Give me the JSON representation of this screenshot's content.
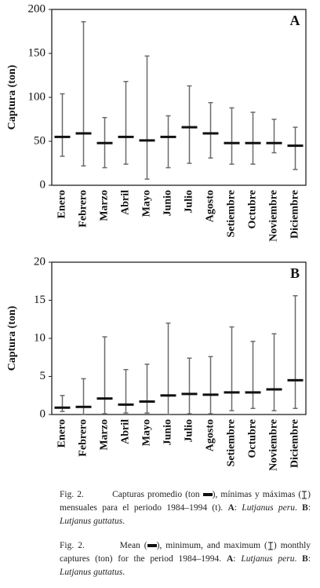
{
  "chart_data": [
    {
      "type": "range",
      "panel_label": "A",
      "ylabel": "Captura (ton)",
      "categories": [
        "Enero",
        "Febrero",
        "Marzo",
        "Abril",
        "Mayo",
        "Junio",
        "Julio",
        "Agosto",
        "Setiembre",
        "Octubre",
        "Noviembre",
        "Diciembre"
      ],
      "mean": [
        55,
        59,
        48,
        55,
        51,
        55,
        66,
        59,
        48,
        48,
        48,
        45
      ],
      "min": [
        33,
        22,
        20,
        24,
        7,
        20,
        25,
        31,
        24,
        24,
        37,
        18
      ],
      "max": [
        104,
        186,
        77,
        118,
        147,
        79,
        113,
        94,
        88,
        83,
        75,
        66
      ],
      "ylim": [
        0,
        200
      ],
      "yticks": [
        0,
        50,
        100,
        150,
        200
      ],
      "mean_color": "#111111",
      "whisker_color": "#6a6a6a"
    },
    {
      "type": "range",
      "panel_label": "B",
      "ylabel": "Captura (ton)",
      "categories": [
        "Enero",
        "Febrero",
        "Marzo",
        "Abril",
        "Mayo",
        "Junio",
        "Julio",
        "Agosto",
        "Setiembre",
        "Octubre",
        "Noviembre",
        "Diciembre"
      ],
      "mean": [
        0.9,
        1.0,
        2.1,
        1.3,
        1.7,
        2.5,
        2.7,
        2.6,
        2.9,
        2.9,
        3.3,
        4.5
      ],
      "min": [
        0.4,
        0,
        0.1,
        0.2,
        0.2,
        0,
        0.1,
        0.1,
        0.5,
        0.8,
        0.5,
        0.8
      ],
      "max": [
        2.5,
        4.7,
        10.2,
        5.9,
        6.6,
        12,
        7.4,
        7.6,
        11.5,
        9.6,
        10.6,
        15.6
      ],
      "ylim": [
        0,
        20
      ],
      "yticks": [
        0,
        5,
        10,
        15,
        20
      ],
      "mean_color": "#111111",
      "whisker_color": "#6a6a6a"
    }
  ],
  "caption_es": {
    "label": "Fig. 2.",
    "parts": [
      "Capturas promedio (ton",
      "), mínimas y máximas (",
      ") mensuales para el periodo 1984–1994 (t).",
      "A",
      ":",
      "Lutjanus peru",
      ".",
      "B",
      ":",
      "Lutjanus guttatus",
      "."
    ]
  },
  "caption_en": {
    "label": "Fig. 2.",
    "parts": [
      "Mean (",
      "), minimum, and maximum (",
      ") monthly captures (ton) for the period 1984–1994.",
      "A",
      ":",
      "Lutjanus peru",
      ".",
      "B",
      ":",
      "Lutjanus guttatus",
      "."
    ]
  }
}
